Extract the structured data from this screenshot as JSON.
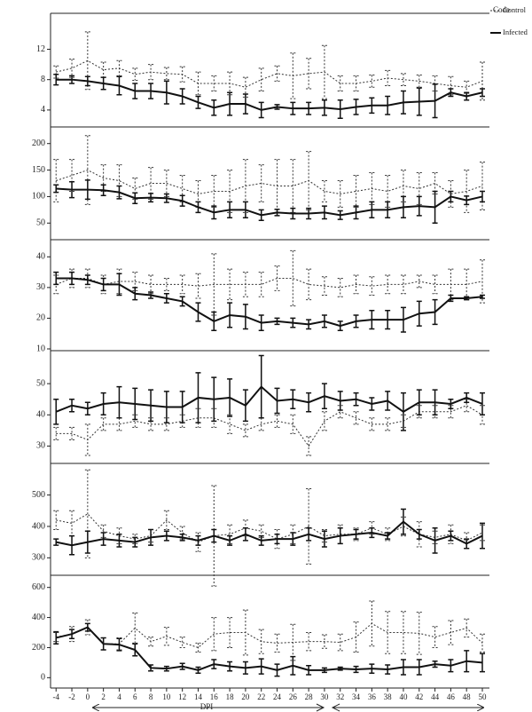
{
  "chart_data": [
    {
      "type": "line",
      "legend_title": "Code",
      "ylim": [
        2,
        16.5
      ],
      "yticks": [
        4,
        8,
        12
      ],
      "series": [
        {
          "name": "Control",
          "color": "#333333",
          "dashed": true,
          "values": [
            9.0,
            9.5,
            10.5,
            9.3,
            9.5,
            8.7,
            9.0,
            8.8,
            8.7,
            7.5,
            7.5,
            7.5,
            7.0,
            8.0,
            8.8,
            8.5,
            8.8,
            9.0,
            7.5,
            7.5,
            7.8,
            8.2,
            8.0,
            7.8,
            7.5,
            7.2,
            7.0,
            7.8
          ],
          "errors": [
            0.8,
            1.2,
            3.8,
            1.0,
            1.0,
            0.8,
            1.0,
            0.8,
            1.0,
            1.5,
            1.0,
            1.5,
            1.3,
            1.5,
            1.0,
            3.0,
            2.0,
            3.5,
            1.0,
            1.0,
            0.8,
            1.0,
            0.8,
            0.8,
            1.0,
            1.2,
            0.8,
            2.5
          ]
        },
        {
          "name": "Infected",
          "color": "#111111",
          "dashed": false,
          "values": [
            8.0,
            8.0,
            7.8,
            7.5,
            7.2,
            6.5,
            6.5,
            6.3,
            5.8,
            5.0,
            4.3,
            4.8,
            4.8,
            4.0,
            4.4,
            4.2,
            4.2,
            4.3,
            4.1,
            4.4,
            4.6,
            4.6,
            5.0,
            5.1,
            5.2,
            6.3,
            5.8,
            6.3
          ],
          "errors": [
            0.7,
            0.5,
            0.6,
            0.8,
            1.2,
            1.0,
            1.0,
            1.5,
            1.0,
            0.8,
            1.0,
            1.5,
            1.3,
            1.0,
            0.3,
            0.8,
            0.8,
            1.0,
            1.2,
            1.0,
            1.0,
            1.2,
            1.5,
            1.8,
            2.2,
            0.5,
            0.5,
            0.5
          ]
        }
      ]
    },
    {
      "type": "line",
      "ylim": [
        22,
        228
      ],
      "yticks": [
        50,
        100,
        150,
        200
      ],
      "series": [
        {
          "color": "#333333",
          "dashed": true,
          "values": [
            130,
            140,
            150,
            135,
            130,
            115,
            125,
            125,
            115,
            105,
            110,
            110,
            120,
            125,
            120,
            120,
            130,
            110,
            105,
            110,
            115,
            110,
            120,
            115,
            125,
            105,
            110,
            120
          ],
          "errors": [
            40,
            30,
            65,
            25,
            30,
            20,
            30,
            25,
            25,
            25,
            30,
            40,
            50,
            35,
            50,
            50,
            55,
            20,
            25,
            30,
            30,
            30,
            30,
            30,
            20,
            25,
            40,
            45
          ]
        },
        {
          "color": "#111111",
          "dashed": false,
          "values": [
            115,
            113,
            113,
            112,
            108,
            97,
            98,
            97,
            92,
            80,
            70,
            75,
            75,
            65,
            70,
            68,
            68,
            70,
            65,
            70,
            75,
            75,
            80,
            82,
            80,
            100,
            93,
            100
          ],
          "errors": [
            7,
            15,
            18,
            10,
            12,
            10,
            8,
            8,
            10,
            10,
            12,
            15,
            15,
            10,
            6,
            10,
            10,
            12,
            8,
            12,
            15,
            15,
            20,
            18,
            30,
            10,
            8,
            10
          ]
        }
      ]
    },
    {
      "type": "line",
      "ylim": [
        10,
        45
      ],
      "yticks": [
        10,
        20,
        30,
        40
      ],
      "series": [
        {
          "color": "#333333",
          "dashed": true,
          "values": [
            31,
            33,
            33,
            31,
            32,
            32,
            31,
            31,
            31,
            30.5,
            31,
            31,
            31,
            31,
            33,
            33,
            31,
            30.5,
            30,
            31,
            30.5,
            31,
            31,
            32,
            31,
            31,
            31,
            32
          ],
          "errors": [
            3,
            3,
            3,
            3,
            4,
            3,
            3,
            2,
            3,
            4,
            10,
            5,
            4,
            4,
            4,
            9,
            5,
            3,
            3,
            3,
            3,
            3,
            3,
            2,
            3,
            5,
            5,
            7
          ]
        },
        {
          "color": "#111111",
          "dashed": false,
          "values": [
            33,
            33,
            32.5,
            31,
            31,
            28,
            27.5,
            26.5,
            25.5,
            22,
            19,
            21,
            20.5,
            18.5,
            19,
            18.5,
            18,
            19,
            17.5,
            19,
            19.5,
            19.5,
            19.5,
            21.5,
            22,
            26.5,
            26.5,
            27
          ],
          "errors": [
            2,
            2,
            1.5,
            2,
            3.5,
            2,
            1,
            1.5,
            1.5,
            3,
            3,
            4,
            4,
            2.5,
            1,
            1.5,
            1.5,
            2,
            1.5,
            2,
            3,
            3,
            4,
            4,
            4,
            1,
            0.5,
            0.5
          ]
        }
      ]
    },
    {
      "type": "line",
      "ylim": [
        25,
        60
      ],
      "yticks": [
        30,
        40,
        50
      ],
      "series": [
        {
          "color": "#333333",
          "dashed": true,
          "values": [
            34,
            34,
            32,
            37,
            37,
            38,
            37,
            37,
            38,
            39,
            39,
            37,
            35,
            37,
            38,
            37,
            30,
            38,
            41,
            39,
            37,
            37,
            38,
            41,
            41,
            41,
            43,
            40
          ],
          "errors": [
            2,
            2,
            5,
            2,
            2,
            2,
            2,
            2,
            2,
            3,
            3,
            3,
            2,
            2,
            2,
            3,
            3,
            3,
            2,
            2,
            2,
            2,
            2,
            2,
            2,
            2,
            2,
            3
          ]
        },
        {
          "color": "#111111",
          "dashed": false,
          "values": [
            41,
            43,
            42,
            43.5,
            44,
            43.5,
            43,
            42.5,
            42.5,
            45.5,
            45,
            45.5,
            43,
            49,
            44.5,
            45,
            44,
            46,
            44.5,
            45,
            43.5,
            44.5,
            41,
            44,
            44,
            43.5,
            45.5,
            43.5
          ],
          "errors": [
            4,
            2,
            2,
            3.5,
            5,
            5,
            5,
            5,
            5,
            8,
            7,
            6,
            5,
            10,
            4,
            3,
            3,
            4,
            3,
            2,
            2,
            3,
            6,
            4,
            4,
            1.5,
            1.5,
            3.5
          ]
        }
      ]
    },
    {
      "type": "line",
      "ylim": [
        250,
        595
      ],
      "yticks": [
        300,
        400,
        500
      ],
      "series": [
        {
          "color": "#333333",
          "dashed": true,
          "values": [
            420,
            410,
            440,
            385,
            370,
            360,
            370,
            420,
            380,
            350,
            370,
            375,
            395,
            385,
            360,
            375,
            400,
            370,
            375,
            375,
            395,
            375,
            400,
            375,
            365,
            375,
            355,
            380
          ],
          "errors": [
            30,
            40,
            140,
            20,
            25,
            15,
            20,
            30,
            20,
            30,
            160,
            30,
            25,
            20,
            30,
            30,
            120,
            20,
            30,
            20,
            20,
            20,
            30,
            40,
            20,
            30,
            25,
            25
          ]
        },
        {
          "color": "#111111",
          "dashed": false,
          "values": [
            350,
            340,
            350,
            360,
            355,
            350,
            365,
            370,
            365,
            355,
            370,
            355,
            375,
            355,
            360,
            360,
            375,
            360,
            370,
            375,
            380,
            370,
            415,
            375,
            355,
            370,
            345,
            370
          ],
          "errors": [
            10,
            30,
            35,
            20,
            20,
            15,
            25,
            15,
            10,
            15,
            20,
            15,
            20,
            15,
            15,
            20,
            20,
            25,
            25,
            15,
            15,
            10,
            40,
            15,
            40,
            15,
            15,
            40
          ]
        }
      ]
    },
    {
      "type": "line",
      "ylim": [
        -57,
        669
      ],
      "yticks": [
        0,
        200,
        400,
        600
      ],
      "x": [
        -4,
        -2,
        0,
        2,
        4,
        6,
        8,
        10,
        12,
        14,
        16,
        18,
        20,
        22,
        24,
        26,
        28,
        30,
        32,
        34,
        36,
        38,
        40,
        42,
        44,
        46,
        48,
        50
      ],
      "xlim": [
        -4.7,
        50.9
      ],
      "xticks": [
        -4,
        -2,
        0,
        2,
        4,
        6,
        8,
        10,
        12,
        14,
        16,
        18,
        20,
        22,
        24,
        26,
        28,
        30,
        32,
        34,
        36,
        38,
        40,
        42,
        44,
        46,
        48,
        50
      ],
      "xlabel": "DPI",
      "series": [
        {
          "color": "#333333",
          "dashed": true,
          "values": [
            270,
            290,
            335,
            225,
            225,
            330,
            240,
            275,
            235,
            200,
            290,
            300,
            300,
            240,
            230,
            235,
            240,
            240,
            235,
            270,
            360,
            300,
            300,
            295,
            270,
            300,
            330,
            230
          ],
          "errors": [
            30,
            50,
            50,
            40,
            40,
            100,
            30,
            60,
            35,
            30,
            110,
            100,
            150,
            80,
            60,
            120,
            60,
            45,
            55,
            100,
            150,
            140,
            140,
            140,
            70,
            80,
            60,
            60
          ]
        },
        {
          "color": "#111111",
          "dashed": false,
          "values": [
            265,
            290,
            335,
            225,
            220,
            185,
            65,
            60,
            75,
            50,
            90,
            75,
            65,
            75,
            50,
            80,
            50,
            50,
            60,
            55,
            60,
            55,
            70,
            70,
            90,
            80,
            110,
            100
          ],
          "errors": [
            40,
            30,
            25,
            40,
            40,
            40,
            20,
            15,
            20,
            20,
            30,
            30,
            40,
            50,
            40,
            60,
            30,
            15,
            10,
            20,
            30,
            30,
            50,
            50,
            20,
            40,
            70,
            60
          ]
        }
      ]
    }
  ]
}
